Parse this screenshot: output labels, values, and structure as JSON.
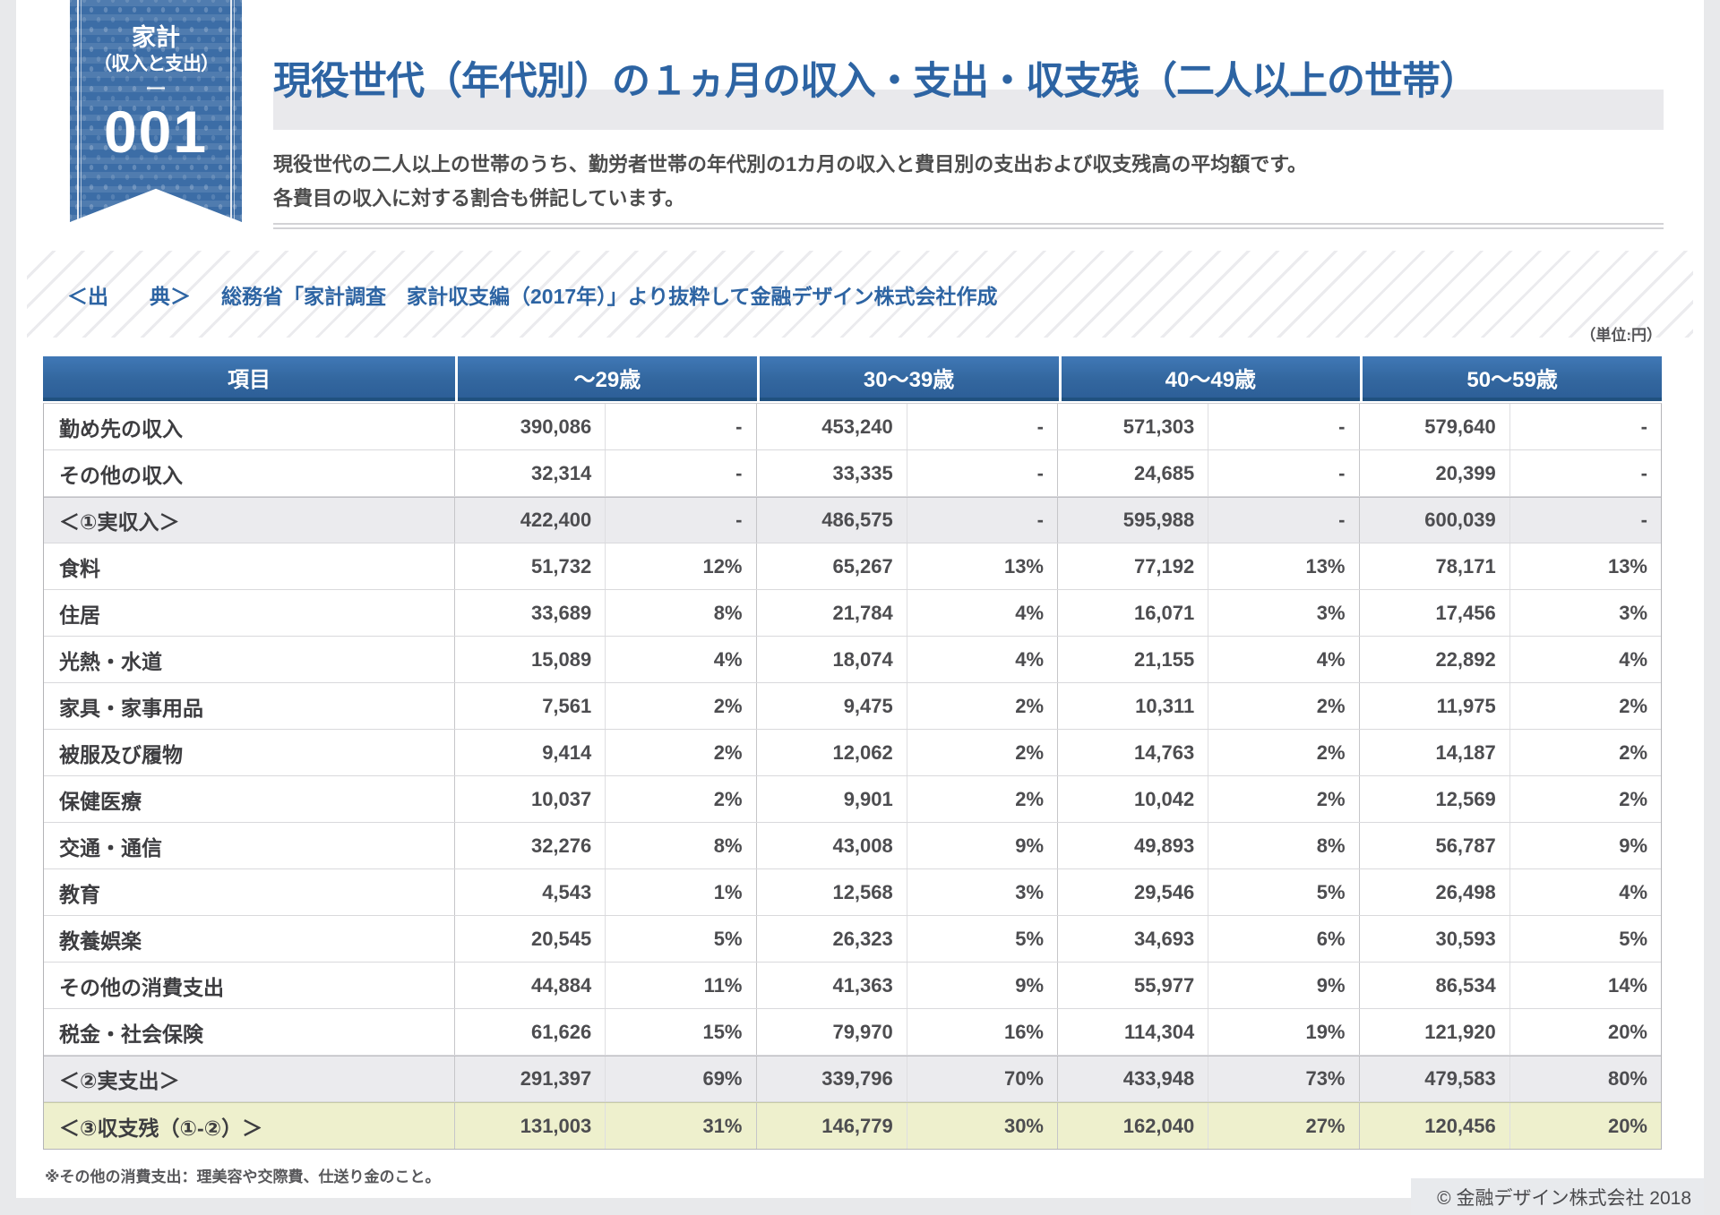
{
  "ribbon": {
    "category_line1": "家計",
    "category_line2": "（収入と支出）",
    "dash": "—",
    "number": "001"
  },
  "header": {
    "title": "現役世代（年代別）の１ヵ月の収入・支出・収支残（二人以上の世帯）",
    "description_line1": "現役世代の二人以上の世帯のうち、勤労者世帯の年代別の1カ月の収入と費目別の支出および収支残高の平均額です。",
    "description_line2": "各費目の収入に対する割合も併記しています。"
  },
  "source": {
    "label": "＜出　　典＞",
    "text": "総務省「家計調査　家計収支編（2017年）」より抜粋して金融デザイン株式会社作成"
  },
  "table": {
    "unit_note": "（単位:円）",
    "columns": [
      "項目",
      "～29歳",
      "30～39歳",
      "40～49歳",
      "50～59歳"
    ],
    "rows": [
      {
        "label": "勤め先の収入",
        "emphasis": "none",
        "cells": [
          "390,086",
          "-",
          "453,240",
          "-",
          "571,303",
          "-",
          "579,640",
          "-"
        ]
      },
      {
        "label": "その他の収入",
        "emphasis": "none",
        "cells": [
          "32,314",
          "-",
          "33,335",
          "-",
          "24,685",
          "-",
          "20,399",
          "-"
        ]
      },
      {
        "label": "＜①実収入＞",
        "emphasis": "subtotal",
        "cells": [
          "422,400",
          "-",
          "486,575",
          "-",
          "595,988",
          "-",
          "600,039",
          "-"
        ]
      },
      {
        "label": "食料",
        "emphasis": "none",
        "cells": [
          "51,732",
          "12%",
          "65,267",
          "13%",
          "77,192",
          "13%",
          "78,171",
          "13%"
        ]
      },
      {
        "label": "住居",
        "emphasis": "none",
        "cells": [
          "33,689",
          "8%",
          "21,784",
          "4%",
          "16,071",
          "3%",
          "17,456",
          "3%"
        ]
      },
      {
        "label": "光熱・水道",
        "emphasis": "none",
        "cells": [
          "15,089",
          "4%",
          "18,074",
          "4%",
          "21,155",
          "4%",
          "22,892",
          "4%"
        ]
      },
      {
        "label": "家具・家事用品",
        "emphasis": "none",
        "cells": [
          "7,561",
          "2%",
          "9,475",
          "2%",
          "10,311",
          "2%",
          "11,975",
          "2%"
        ]
      },
      {
        "label": "被服及び履物",
        "emphasis": "none",
        "cells": [
          "9,414",
          "2%",
          "12,062",
          "2%",
          "14,763",
          "2%",
          "14,187",
          "2%"
        ]
      },
      {
        "label": "保健医療",
        "emphasis": "none",
        "cells": [
          "10,037",
          "2%",
          "9,901",
          "2%",
          "10,042",
          "2%",
          "12,569",
          "2%"
        ]
      },
      {
        "label": "交通・通信",
        "emphasis": "none",
        "cells": [
          "32,276",
          "8%",
          "43,008",
          "9%",
          "49,893",
          "8%",
          "56,787",
          "9%"
        ]
      },
      {
        "label": "教育",
        "emphasis": "none",
        "cells": [
          "4,543",
          "1%",
          "12,568",
          "3%",
          "29,546",
          "5%",
          "26,498",
          "4%"
        ]
      },
      {
        "label": "教養娯楽",
        "emphasis": "none",
        "cells": [
          "20,545",
          "5%",
          "26,323",
          "5%",
          "34,693",
          "6%",
          "30,593",
          "5%"
        ]
      },
      {
        "label": "その他の消費支出",
        "emphasis": "none",
        "cells": [
          "44,884",
          "11%",
          "41,363",
          "9%",
          "55,977",
          "9%",
          "86,534",
          "14%"
        ]
      },
      {
        "label": "税金・社会保険",
        "emphasis": "none",
        "cells": [
          "61,626",
          "15%",
          "79,970",
          "16%",
          "114,304",
          "19%",
          "121,920",
          "20%"
        ]
      },
      {
        "label": "＜②実支出＞",
        "emphasis": "subtotal",
        "cells": [
          "291,397",
          "69%",
          "339,796",
          "70%",
          "433,948",
          "73%",
          "479,583",
          "80%"
        ]
      },
      {
        "label": "＜③収支残（①-②）＞",
        "emphasis": "total",
        "cells": [
          "131,003",
          "31%",
          "146,779",
          "30%",
          "162,040",
          "27%",
          "120,456",
          "20%"
        ]
      }
    ]
  },
  "footnote": {
    "text": "※その他の消費支出：理美容や交際費、仕送り金のこと。"
  },
  "copyright": {
    "text": "© 金融デザイン株式会社 2018"
  },
  "colors": {
    "accent_blue": "#2d64a3",
    "header_blue": "#33679f",
    "ribbon_blue": "#3c6da6",
    "subtotal_gray": "#ebebee",
    "total_yellow_green": "#eef0cd",
    "outer_background": "#e8e9eb"
  }
}
